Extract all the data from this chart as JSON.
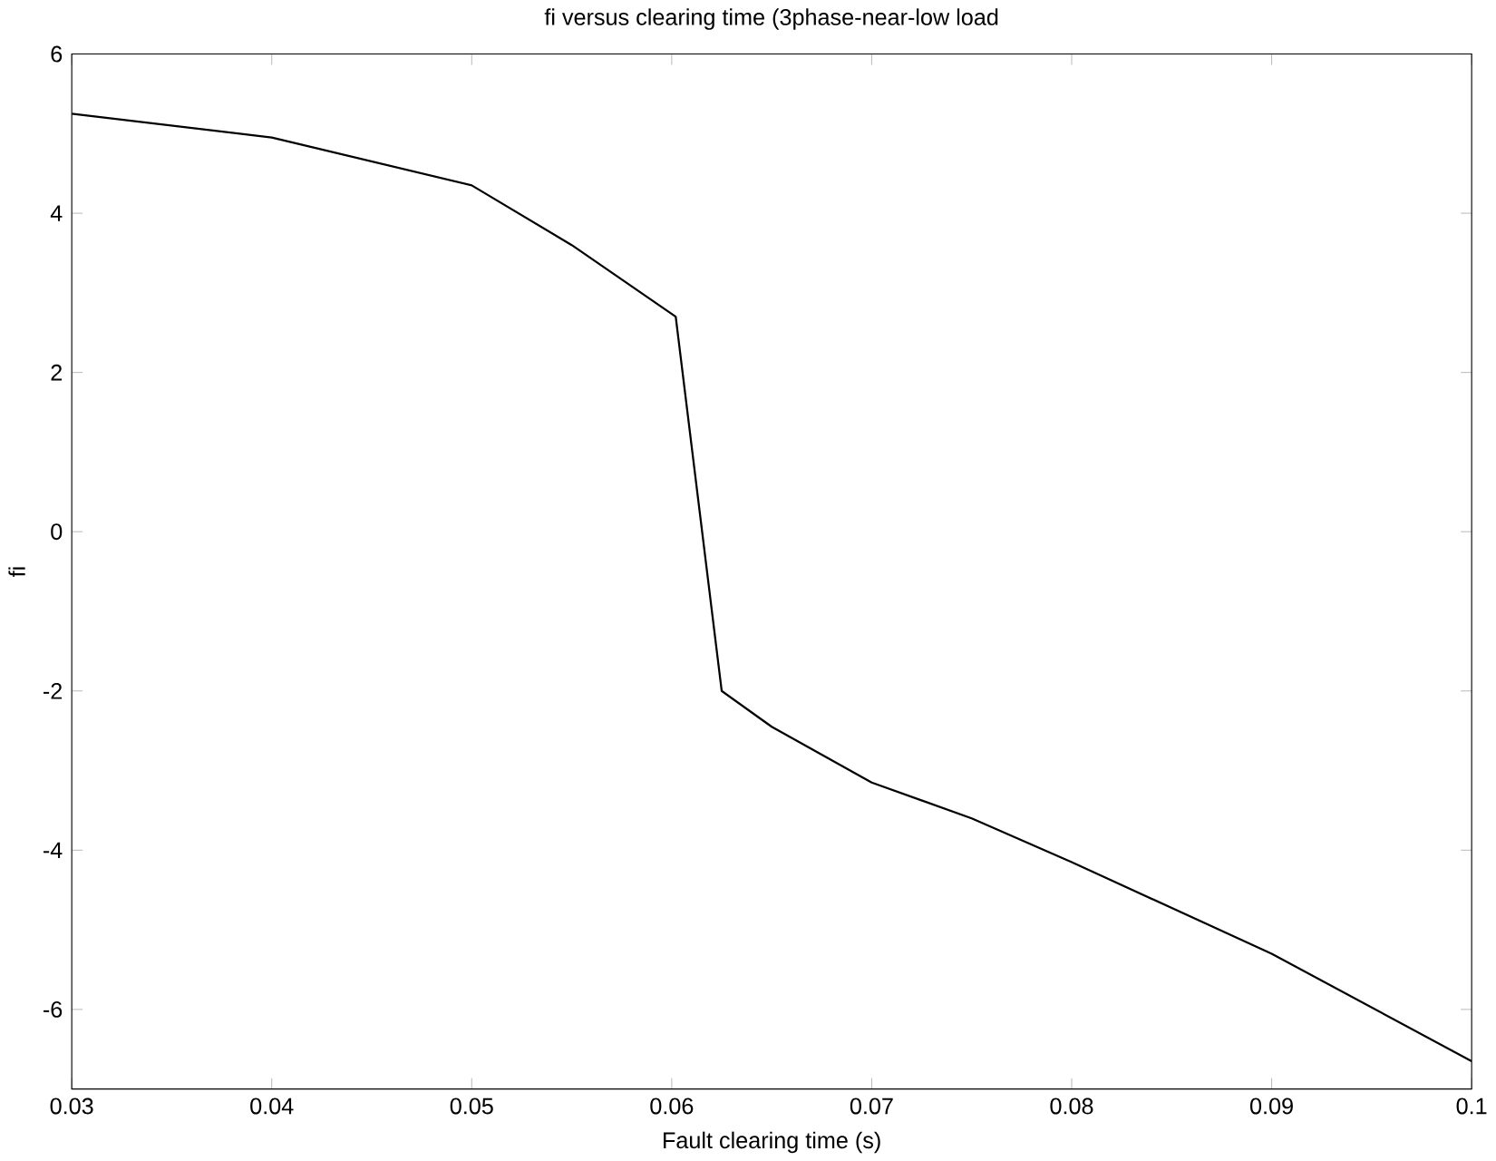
{
  "chart_data": {
    "type": "line",
    "title": "fi versus clearing time (3phase-near-low load",
    "xlabel": "Fault clearing time (s)",
    "ylabel": "fi",
    "x": [
      0.03,
      0.04,
      0.05,
      0.055,
      0.0602,
      0.0625,
      0.065,
      0.07,
      0.075,
      0.08,
      0.09,
      0.1
    ],
    "series": [
      {
        "color": "#000000",
        "values": [
          5.25,
          4.95,
          4.35,
          3.6,
          2.7,
          -2.0,
          -2.45,
          -3.15,
          -3.6,
          -4.15,
          -5.3,
          -6.65
        ]
      }
    ],
    "xlim": [
      0.03,
      0.1
    ],
    "ylim": [
      -7,
      6
    ],
    "xticks": [
      0.03,
      0.04,
      0.05,
      0.06,
      0.07,
      0.08,
      0.09,
      0.1
    ],
    "yticks": [
      -6,
      -4,
      -2,
      0,
      2,
      4,
      6
    ],
    "grid": false,
    "marker": "none",
    "line_style": "solid"
  }
}
